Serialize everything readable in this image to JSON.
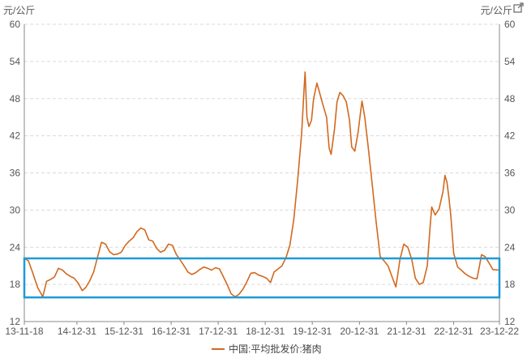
{
  "chart_data": {
    "type": "line",
    "y_unit_left": "元/公斤",
    "y_unit_right": "元/公斤",
    "ylim": [
      12,
      60
    ],
    "yticks": [
      12,
      18,
      24,
      30,
      36,
      42,
      48,
      54,
      60
    ],
    "xlim": [
      "2013-11-18",
      "2023-12-22"
    ],
    "xtick_labels": [
      "13-11-18",
      "14-12-31",
      "15-12-31",
      "16-12-31",
      "17-12-31",
      "18-12-31",
      "19-12-31",
      "20-12-31",
      "21-12-31",
      "22-12-31",
      "23-12-22"
    ],
    "xtick_dates": [
      "2013-11-18",
      "2014-12-31",
      "2015-12-31",
      "2016-12-31",
      "2017-12-31",
      "2018-12-31",
      "2019-12-31",
      "2020-12-31",
      "2021-12-31",
      "2022-12-31",
      "2023-12-22"
    ],
    "grid": true,
    "legend_position": "bottom-center",
    "series": [
      {
        "name": "中国:平均批发价:猪肉",
        "color": "#d2691e",
        "points": [
          [
            "2013-11-18",
            22.2
          ],
          [
            "2013-12-20",
            21.8
          ],
          [
            "2014-01-20",
            20.0
          ],
          [
            "2014-03-01",
            17.5
          ],
          [
            "2014-04-10",
            16.0
          ],
          [
            "2014-05-10",
            18.5
          ],
          [
            "2014-06-10",
            18.8
          ],
          [
            "2014-07-10",
            19.2
          ],
          [
            "2014-08-10",
            20.6
          ],
          [
            "2014-09-10",
            20.3
          ],
          [
            "2014-10-10",
            19.7
          ],
          [
            "2014-11-10",
            19.3
          ],
          [
            "2014-12-10",
            19.0
          ],
          [
            "2015-01-10",
            18.2
          ],
          [
            "2015-02-10",
            17.0
          ],
          [
            "2015-03-10",
            17.5
          ],
          [
            "2015-04-10",
            18.6
          ],
          [
            "2015-05-10",
            20.0
          ],
          [
            "2015-06-10",
            22.5
          ],
          [
            "2015-07-10",
            24.8
          ],
          [
            "2015-08-10",
            24.5
          ],
          [
            "2015-09-10",
            23.3
          ],
          [
            "2015-10-10",
            22.8
          ],
          [
            "2015-11-10",
            22.9
          ],
          [
            "2015-12-10",
            23.2
          ],
          [
            "2016-01-10",
            24.3
          ],
          [
            "2016-02-10",
            25.0
          ],
          [
            "2016-03-10",
            25.5
          ],
          [
            "2016-04-10",
            26.5
          ],
          [
            "2016-05-10",
            27.1
          ],
          [
            "2016-06-10",
            26.8
          ],
          [
            "2016-07-10",
            25.2
          ],
          [
            "2016-08-10",
            25.0
          ],
          [
            "2016-09-10",
            23.8
          ],
          [
            "2016-10-10",
            23.2
          ],
          [
            "2016-11-10",
            23.5
          ],
          [
            "2016-12-10",
            24.5
          ],
          [
            "2017-01-10",
            24.3
          ],
          [
            "2017-02-10",
            22.8
          ],
          [
            "2017-03-10",
            22.0
          ],
          [
            "2017-04-10",
            21.0
          ],
          [
            "2017-05-10",
            20.0
          ],
          [
            "2017-06-10",
            19.6
          ],
          [
            "2017-07-10",
            19.9
          ],
          [
            "2017-08-10",
            20.4
          ],
          [
            "2017-09-10",
            20.8
          ],
          [
            "2017-10-10",
            20.6
          ],
          [
            "2017-11-10",
            20.3
          ],
          [
            "2017-12-10",
            20.7
          ],
          [
            "2018-01-10",
            20.5
          ],
          [
            "2018-02-10",
            19.2
          ],
          [
            "2018-03-10",
            18.0
          ],
          [
            "2018-04-10",
            16.5
          ],
          [
            "2018-05-10",
            16.0
          ],
          [
            "2018-06-10",
            16.4
          ],
          [
            "2018-07-10",
            17.2
          ],
          [
            "2018-08-10",
            18.4
          ],
          [
            "2018-09-10",
            19.8
          ],
          [
            "2018-10-10",
            19.9
          ],
          [
            "2018-11-10",
            19.5
          ],
          [
            "2018-12-10",
            19.3
          ],
          [
            "2019-01-10",
            19.0
          ],
          [
            "2019-02-10",
            18.3
          ],
          [
            "2019-03-10",
            20.0
          ],
          [
            "2019-04-10",
            20.5
          ],
          [
            "2019-05-10",
            21.0
          ],
          [
            "2019-06-10",
            22.3
          ],
          [
            "2019-07-10",
            24.3
          ],
          [
            "2019-08-10",
            28.5
          ],
          [
            "2019-09-10",
            35.2
          ],
          [
            "2019-10-10",
            42.5
          ],
          [
            "2019-10-28",
            49.5
          ],
          [
            "2019-11-05",
            52.3
          ],
          [
            "2019-11-20",
            45.0
          ],
          [
            "2019-12-05",
            43.5
          ],
          [
            "2019-12-25",
            44.5
          ],
          [
            "2020-01-10",
            48.0
          ],
          [
            "2020-02-05",
            50.5
          ],
          [
            "2020-02-25",
            49.0
          ],
          [
            "2020-03-20",
            47.2
          ],
          [
            "2020-04-20",
            45.0
          ],
          [
            "2020-05-10",
            40.0
          ],
          [
            "2020-05-25",
            39.0
          ],
          [
            "2020-06-20",
            43.0
          ],
          [
            "2020-07-10",
            47.5
          ],
          [
            "2020-08-01",
            49.0
          ],
          [
            "2020-08-25",
            48.5
          ],
          [
            "2020-09-20",
            47.5
          ],
          [
            "2020-10-15",
            44.5
          ],
          [
            "2020-11-01",
            40.2
          ],
          [
            "2020-11-25",
            39.5
          ],
          [
            "2020-12-20",
            42.5
          ],
          [
            "2021-01-10",
            46.0
          ],
          [
            "2021-01-20",
            47.6
          ],
          [
            "2021-02-10",
            45.0
          ],
          [
            "2021-03-10",
            40.0
          ],
          [
            "2021-04-10",
            34.0
          ],
          [
            "2021-05-10",
            28.0
          ],
          [
            "2021-06-10",
            22.5
          ],
          [
            "2021-07-10",
            21.8
          ],
          [
            "2021-08-10",
            21.0
          ],
          [
            "2021-09-10",
            19.2
          ],
          [
            "2021-10-10",
            17.6
          ],
          [
            "2021-11-10",
            22.0
          ],
          [
            "2021-12-10",
            24.5
          ],
          [
            "2022-01-10",
            24.0
          ],
          [
            "2022-02-10",
            22.0
          ],
          [
            "2022-03-10",
            19.0
          ],
          [
            "2022-04-10",
            18.0
          ],
          [
            "2022-05-10",
            18.3
          ],
          [
            "2022-06-10",
            21.0
          ],
          [
            "2022-07-01",
            27.0
          ],
          [
            "2022-07-15",
            30.5
          ],
          [
            "2022-08-10",
            29.2
          ],
          [
            "2022-09-10",
            30.2
          ],
          [
            "2022-10-10",
            33.0
          ],
          [
            "2022-10-25",
            35.6
          ],
          [
            "2022-11-10",
            34.5
          ],
          [
            "2022-11-25",
            32.0
          ],
          [
            "2022-12-10",
            29.0
          ],
          [
            "2023-01-01",
            23.0
          ],
          [
            "2023-02-01",
            20.8
          ],
          [
            "2023-03-01",
            20.3
          ],
          [
            "2023-04-01",
            19.7
          ],
          [
            "2023-05-01",
            19.3
          ],
          [
            "2023-06-01",
            19.0
          ],
          [
            "2023-07-01",
            18.9
          ],
          [
            "2023-07-20",
            21.0
          ],
          [
            "2023-08-05",
            22.8
          ],
          [
            "2023-09-01",
            22.5
          ],
          [
            "2023-10-01",
            21.5
          ],
          [
            "2023-11-01",
            20.4
          ],
          [
            "2023-12-22",
            20.3
          ]
        ]
      }
    ],
    "annotations": [
      {
        "type": "rect",
        "color": "#1e9ad6",
        "x_range": [
          "2013-11-18",
          "2023-12-22"
        ],
        "y_range": [
          15.9,
          22.2
        ]
      }
    ]
  }
}
